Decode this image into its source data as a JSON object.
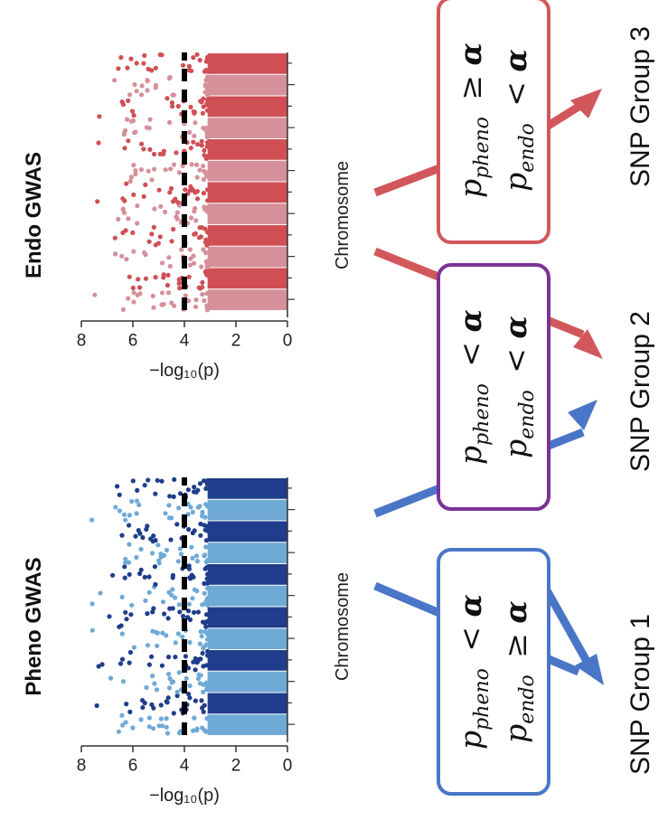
{
  "colors": {
    "pheno_light": "#6fa9d6",
    "pheno_dark": "#1f3d8a",
    "endo_light": "#d6909a",
    "endo_dark": "#cf4f55",
    "blue_arrow": "#4a76c8",
    "red_arrow": "#d2575b",
    "purple_box": "#7a3296",
    "blue_box": "#4a76c8",
    "red_box": "#d2575b"
  },
  "panels": [
    {
      "title": "Pheno GWAS",
      "ylabel": "−log₁₀(p)",
      "xlabel": "Chromosome",
      "yticks": [
        "0",
        "2",
        "4",
        "6",
        "8"
      ],
      "threshold": 4
    },
    {
      "title": "Endo GWAS",
      "ylabel": "−log₁₀(p)",
      "xlabel": "Chromosome",
      "yticks": [
        "0",
        "2",
        "4",
        "6",
        "8"
      ],
      "threshold": 4
    }
  ],
  "boxes": [
    {
      "line1": {
        "p": "p",
        "sub": "pheno",
        "op": "<",
        "a": "α"
      },
      "line2": {
        "p": "p",
        "sub": "endo",
        "op": "≥",
        "a": "α"
      }
    },
    {
      "line1": {
        "p": "p",
        "sub": "pheno",
        "op": "<",
        "a": "α"
      },
      "line2": {
        "p": "p",
        "sub": "endo",
        "op": "<",
        "a": "α"
      }
    },
    {
      "line1": {
        "p": "p",
        "sub": "pheno",
        "op": "≥",
        "a": "α"
      },
      "line2": {
        "p": "p",
        "sub": "endo",
        "op": "<",
        "a": "α"
      }
    }
  ],
  "groups": [
    "SNP Group 1",
    "SNP Group 2",
    "SNP Group 3"
  ]
}
